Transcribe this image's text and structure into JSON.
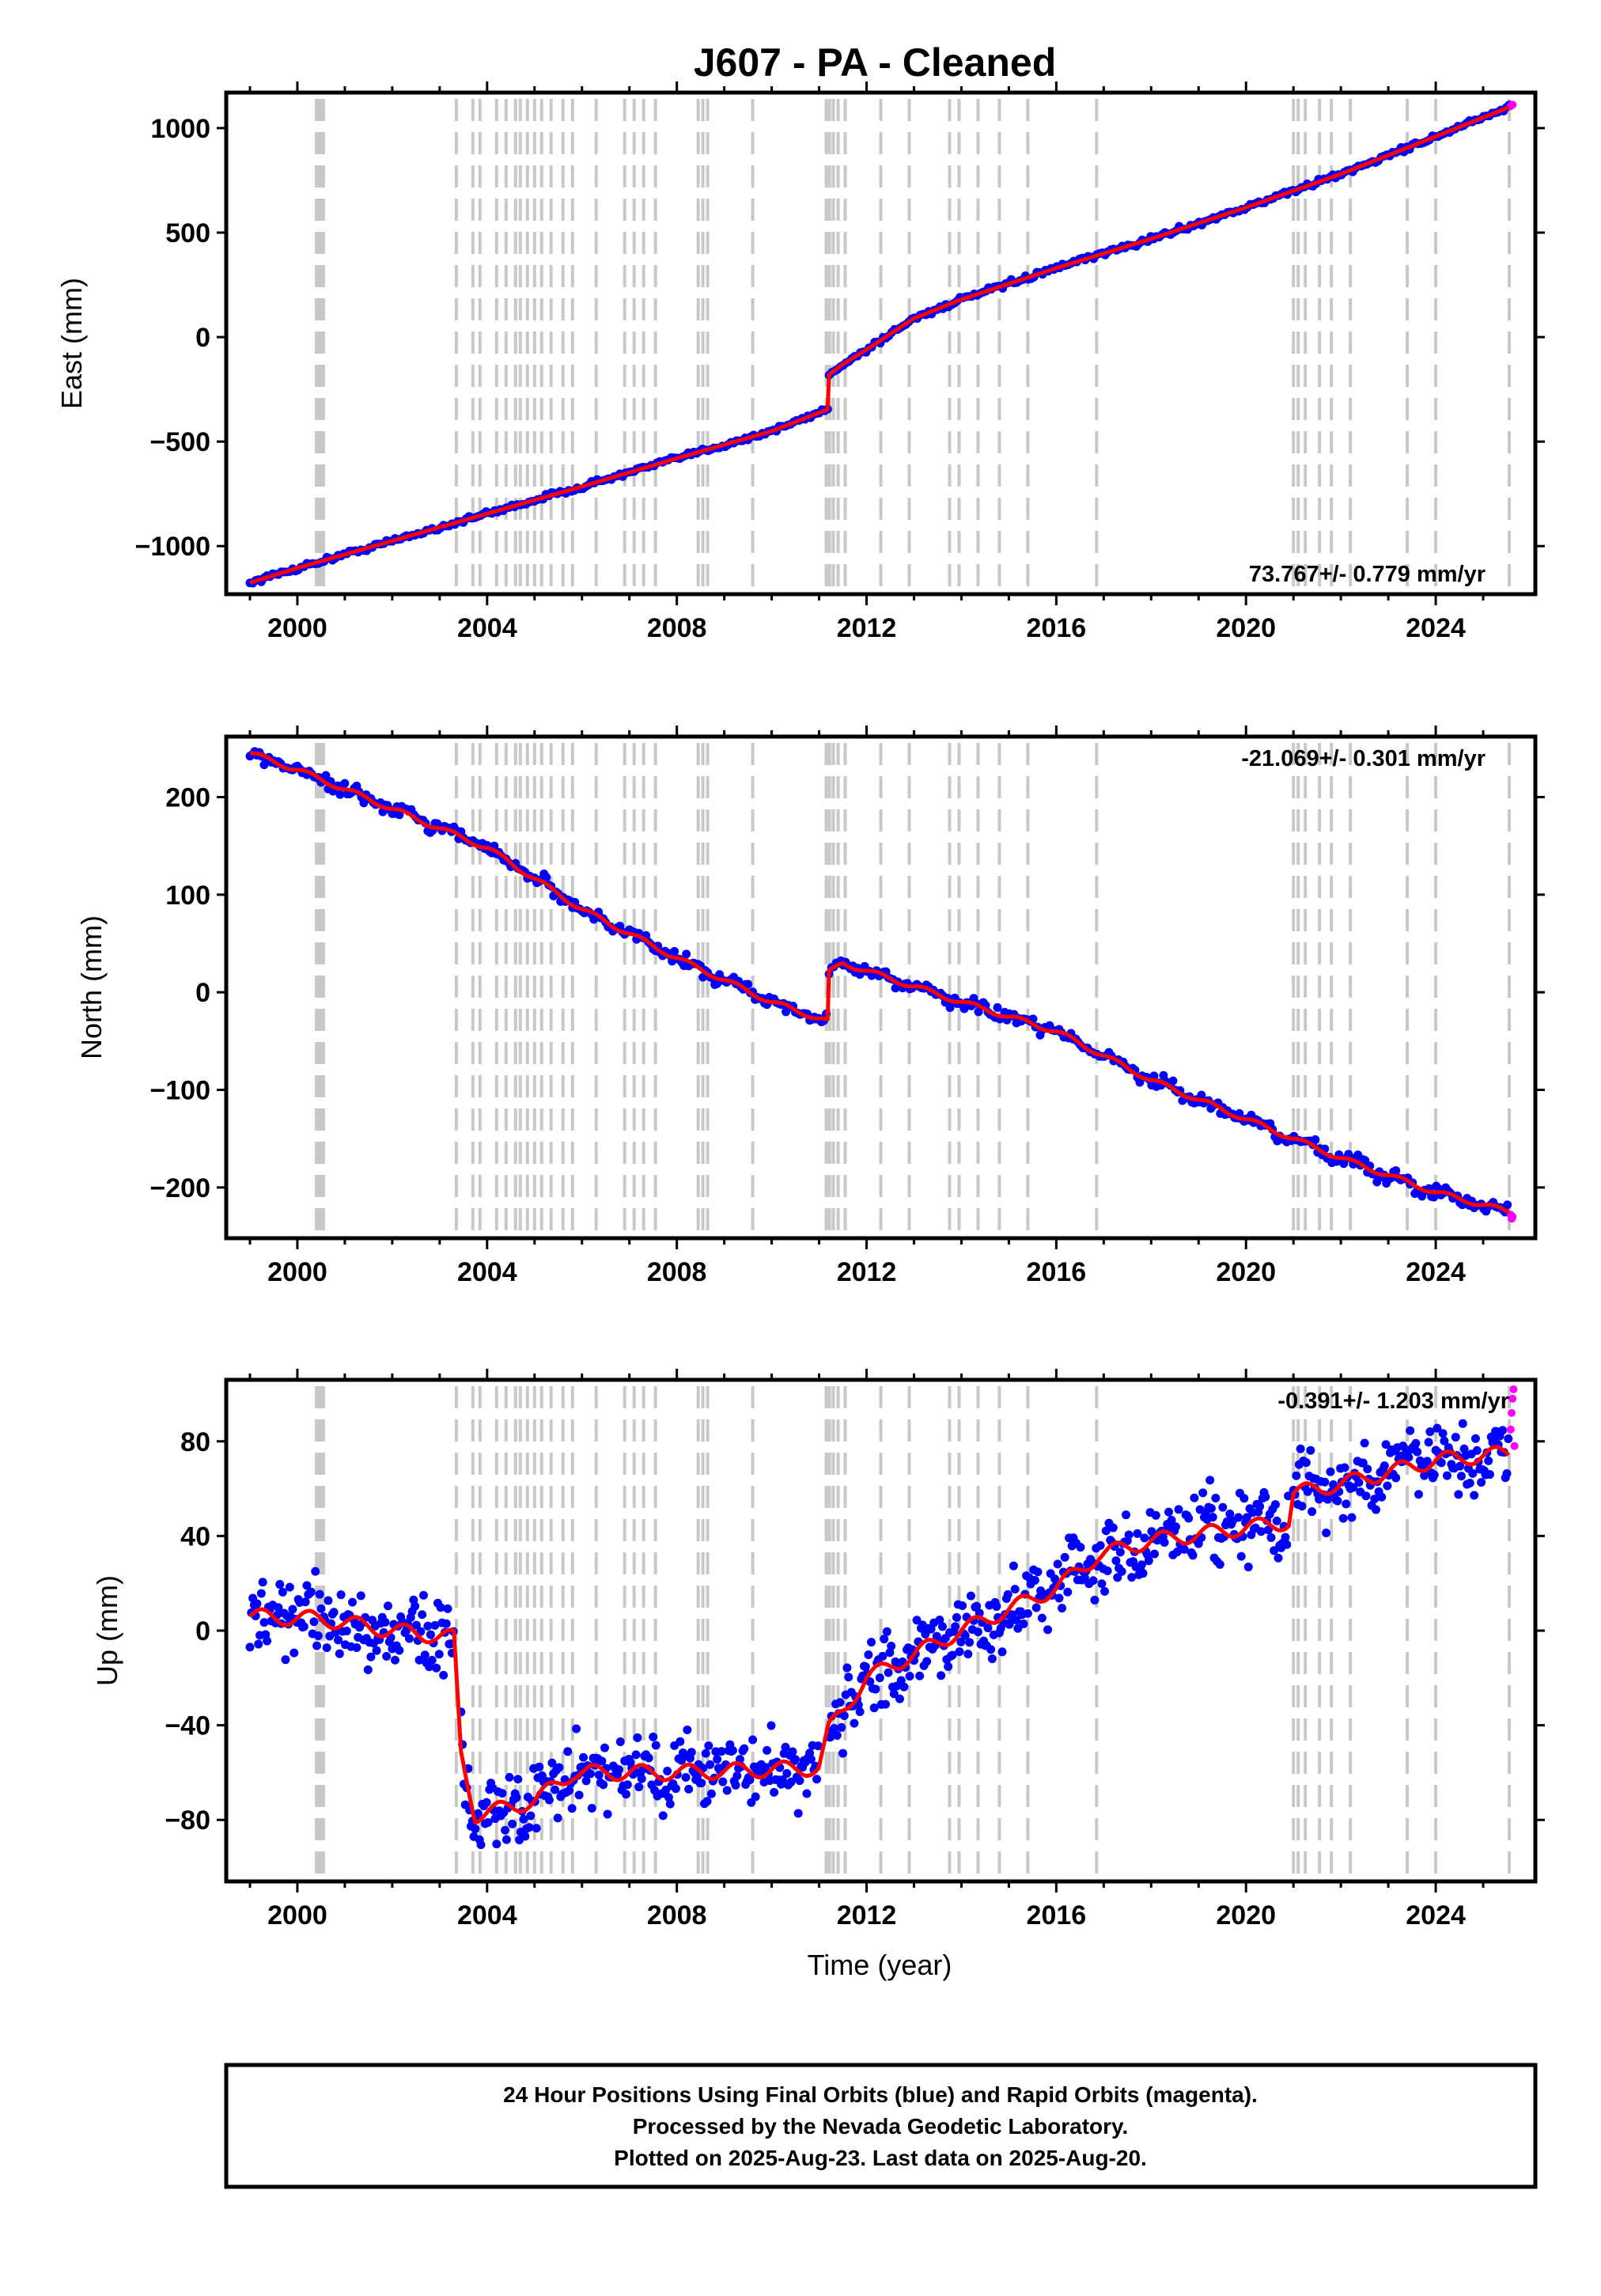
{
  "title": "J607  - PA - Cleaned",
  "colors": {
    "final": "#0000ff",
    "rapid": "#ff00ff",
    "model": "#ff0000",
    "event": "#c8c8c8",
    "frame": "#000000"
  },
  "x_tick_labels": [
    "2000",
    "2004",
    "2008",
    "2012",
    "2016",
    "2020",
    "2024"
  ],
  "xlabel": "Time (year)",
  "chart_data": [
    {
      "type": "scatter",
      "component": "east",
      "ylabel": "East (mm)",
      "xlim": [
        1998.5,
        2026.1
      ],
      "ylim": [
        -1230,
        1170
      ],
      "y_ticks": [
        1000,
        500,
        0,
        -500,
        -1000
      ],
      "y_tick_labels": [
        "1000",
        "500",
        "0",
        "−500",
        "−1000"
      ],
      "rate_text": "73.767+/- 0.779 mm/yr",
      "rate_position": "bottom-right",
      "series": [
        {
          "name": "Final Orbits",
          "x": [
            1999.0,
            2000.0,
            2002.0,
            2004.0,
            2006.0,
            2008.0,
            2010.0,
            2011.19
          ],
          "y": [
            -1175,
            -1105,
            -975,
            -845,
            -715,
            -580,
            -450,
            -345
          ]
        },
        {
          "name": "Final Orbits",
          "x": [
            2011.21,
            2011.5,
            2012.0,
            2013.0,
            2014.0,
            2016.0,
            2018.0,
            2020.0,
            2022.0,
            2024.0,
            2025.55
          ],
          "y": [
            -180,
            -130,
            -60,
            90,
            180,
            330,
            470,
            620,
            780,
            960,
            1100
          ]
        },
        {
          "name": "Rapid Orbits",
          "x": [
            2025.58,
            2025.6,
            2025.62
          ],
          "y": [
            1105,
            1110,
            1112
          ]
        }
      ]
    },
    {
      "type": "scatter",
      "component": "north",
      "ylabel": "North (mm)",
      "xlim": [
        1998.5,
        2026.1
      ],
      "ylim": [
        -252,
        262
      ],
      "y_ticks": [
        200,
        100,
        0,
        -100,
        -200
      ],
      "y_tick_labels": [
        "200",
        "100",
        "0",
        "−100",
        "−200"
      ],
      "rate_text": "-21.069+/- 0.301 mm/yr",
      "rate_position": "top-right",
      "series": [
        {
          "name": "Final Orbits",
          "x": [
            1999.0,
            2000.0,
            2002.0,
            2004.0,
            2006.0,
            2008.0,
            2010.0,
            2011.19
          ],
          "y": [
            245,
            228,
            188,
            148,
            85,
            35,
            -10,
            -30
          ]
        },
        {
          "name": "Final Orbits",
          "x": [
            2011.21,
            2011.5,
            2012.0,
            2014.0,
            2016.0,
            2018.0,
            2020.0,
            2022.0,
            2024.0,
            2025.55
          ],
          "y": [
            20,
            30,
            22,
            -10,
            -40,
            -90,
            -130,
            -170,
            -205,
            -225
          ]
        },
        {
          "name": "Rapid Orbits",
          "x": [
            2025.58,
            2025.6,
            2025.62
          ],
          "y": [
            -228,
            -232,
            -230
          ]
        }
      ]
    },
    {
      "type": "scatter",
      "component": "up",
      "ylabel": "Up (mm)",
      "xlim": [
        1998.5,
        2026.1
      ],
      "ylim": [
        -106,
        106
      ],
      "y_ticks": [
        80,
        40,
        0,
        -40,
        -80
      ],
      "y_tick_labels": [
        "80",
        "40",
        "0",
        "−40",
        "−80"
      ],
      "rate_text": "-0.391+/- 1.203 mm/yr",
      "rate_position": "top-right",
      "series": [
        {
          "name": "Final Orbits",
          "x": [
            1999.0,
            2000.5,
            2002.0,
            2003.3
          ],
          "y": [
            6,
            5,
            0,
            -3
          ]
        },
        {
          "name": "Final Orbits",
          "x": [
            2003.45,
            2003.75,
            2005.0,
            2005.8,
            2008.0,
            2011.0
          ],
          "y": [
            -52,
            -78,
            -72,
            -60,
            -60,
            -58
          ]
        },
        {
          "name": "Final Orbits",
          "x": [
            2011.2,
            2012.0,
            2014.0,
            2016.0,
            2016.9,
            2018.0,
            2020.9
          ],
          "y": [
            -42,
            -20,
            0,
            18,
            32,
            38,
            46
          ]
        },
        {
          "name": "Final Orbits",
          "x": [
            2021.0,
            2022.0,
            2024.0,
            2025.55
          ],
          "y": [
            58,
            62,
            72,
            75
          ]
        },
        {
          "name": "Rapid Orbits",
          "x": [
            2025.58,
            2025.6,
            2025.62,
            2025.64,
            2025.66
          ],
          "y": [
            85,
            92,
            98,
            102,
            78
          ]
        }
      ]
    }
  ],
  "footer": {
    "line1": "24 Hour Positions Using Final Orbits (blue) and Rapid Orbits (magenta).",
    "line2": "Processed by the Nevada Geodetic Laboratory.",
    "line3": "Plotted on 2025-Aug-23. Last data on 2025-Aug-20."
  }
}
